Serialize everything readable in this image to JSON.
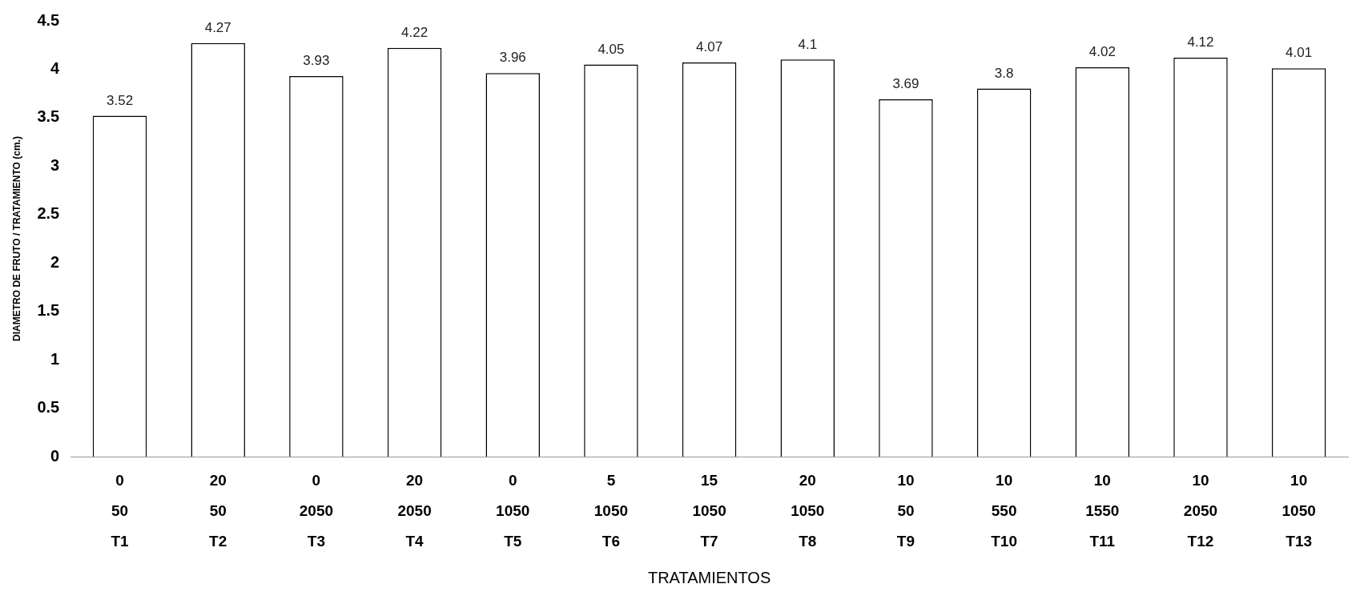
{
  "chart_data": {
    "type": "bar",
    "xlabel": "TRATAMIENTOS",
    "ylabel": "DIAMETRO DE FRUTO / TRATAMIENTO (cm.)",
    "categories": [
      "0\n50\nT1",
      "20\n50\nT2",
      "0\n2050\nT3",
      "20\n2050\nT4",
      "0\n1050\nT5",
      "5\n1050\nT6",
      "15\n1050\nT7",
      "20\n1050\nT8",
      "10\n50\nT9",
      "10\n550\nT10",
      "10\n1550\nT11",
      "10\n2050\nT12",
      "10\n1050\nT13"
    ],
    "values": [
      3.52,
      4.27,
      3.93,
      4.22,
      3.96,
      4.05,
      4.07,
      4.1,
      3.69,
      3.8,
      4.02,
      4.12,
      4.01
    ],
    "color": "#ffffff",
    "ylim": [
      0,
      4.5
    ],
    "yticks": [
      0,
      0.5,
      1,
      1.5,
      2,
      2.5,
      3,
      3.5,
      4,
      4.5
    ],
    "grid": false,
    "data_labels": true
  }
}
